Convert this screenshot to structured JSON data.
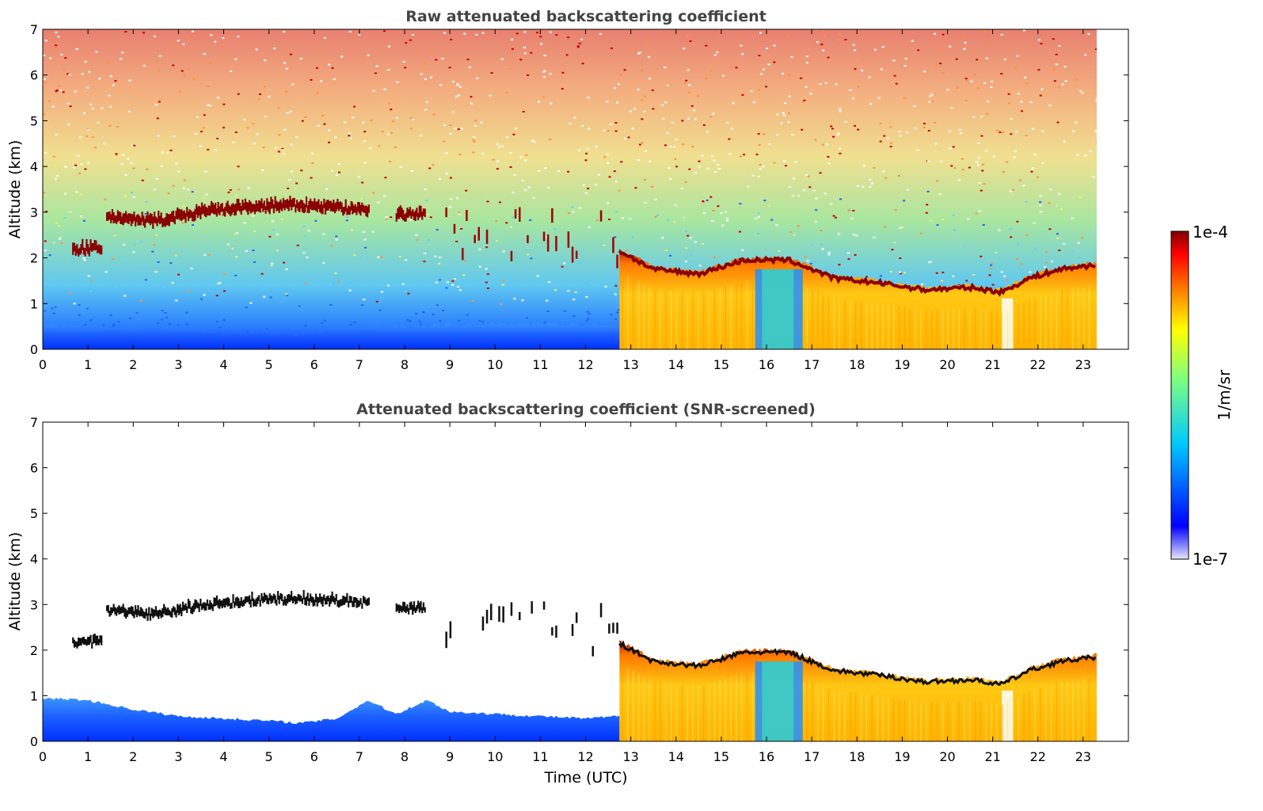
{
  "chart_data": [
    {
      "type": "heatmap",
      "title": "Raw attenuated backscattering coefficient",
      "xlabel": "",
      "ylabel": "Altitude (km)",
      "xlim": [
        0,
        24
      ],
      "ylim": [
        0,
        7
      ],
      "x_ticks": [
        "0",
        "1",
        "2",
        "3",
        "4",
        "5",
        "6",
        "7",
        "8",
        "9",
        "10",
        "11",
        "12",
        "13",
        "14",
        "15",
        "16",
        "17",
        "18",
        "19",
        "20",
        "21",
        "22",
        "23"
      ],
      "y_ticks": [
        "0",
        "1",
        "2",
        "3",
        "4",
        "5",
        "6",
        "7"
      ],
      "data_end_hour": 23.3,
      "layers": [
        {
          "name": "boundary-layer",
          "x": [
            0,
            2,
            4,
            5.5,
            7,
            9,
            11,
            12.75
          ],
          "top_km": [
            0.55,
            0.45,
            0.35,
            0.3,
            0.45,
            0.55,
            0.55,
            0.5
          ]
        },
        {
          "name": "cloud-layer-early",
          "x": [
            0.65,
            1.3
          ],
          "base_km": 2.1
        },
        {
          "name": "cloud-layer-2to7",
          "x": [
            1.4,
            2.5,
            3.5,
            4.5,
            5.5,
            6.5,
            7.2
          ],
          "base_km": [
            2.8,
            2.7,
            2.9,
            3.0,
            3.05,
            3.0,
            2.95
          ]
        },
        {
          "name": "cloud-layer-8",
          "x": [
            7.8,
            8.45
          ],
          "base_km": 2.85
        },
        {
          "name": "low-cloud-13to23",
          "x": [
            12.75,
            13.5,
            14.5,
            15.5,
            16.5,
            17.5,
            18.5,
            19.5,
            20.5,
            21.2,
            21.8,
            22.5,
            23.3
          ],
          "top_km": [
            2.2,
            1.8,
            1.7,
            2.0,
            2.0,
            1.6,
            1.5,
            1.35,
            1.4,
            1.3,
            1.6,
            1.8,
            1.9
          ]
        }
      ]
    },
    {
      "type": "heatmap",
      "title": "Attenuated backscattering coefficient (SNR-screened)",
      "xlabel": "Time (UTC)",
      "ylabel": "Altitude (km)",
      "xlim": [
        0,
        24
      ],
      "ylim": [
        0,
        7
      ],
      "x_ticks": [
        "0",
        "1",
        "2",
        "3",
        "4",
        "5",
        "6",
        "7",
        "8",
        "9",
        "10",
        "11",
        "12",
        "13",
        "14",
        "15",
        "16",
        "17",
        "18",
        "19",
        "20",
        "21",
        "22",
        "23"
      ],
      "y_ticks": [
        "0",
        "1",
        "2",
        "3",
        "4",
        "5",
        "6",
        "7"
      ],
      "data_end_hour": 23.3,
      "boundary_layer_top_km": {
        "x": [
          0,
          1,
          2,
          3,
          4,
          5,
          5.7,
          6.5,
          7.2,
          7.8,
          8.5,
          9,
          10,
          11,
          12,
          12.75
        ],
        "y": [
          0.95,
          0.9,
          0.7,
          0.55,
          0.5,
          0.45,
          0.4,
          0.5,
          0.9,
          0.6,
          0.9,
          0.65,
          0.6,
          0.55,
          0.5,
          0.55
        ]
      }
    }
  ],
  "colorbar": {
    "label": "1/m/sr",
    "max_label": "1e-4",
    "min_label": "1e-7",
    "scale": "log",
    "range": [
      1e-07,
      0.0001
    ],
    "colors": [
      "#e6e6fa",
      "#0000ff",
      "#00c8ff",
      "#7fff7f",
      "#ffff00",
      "#ff8000",
      "#ff0000",
      "#800000"
    ]
  }
}
